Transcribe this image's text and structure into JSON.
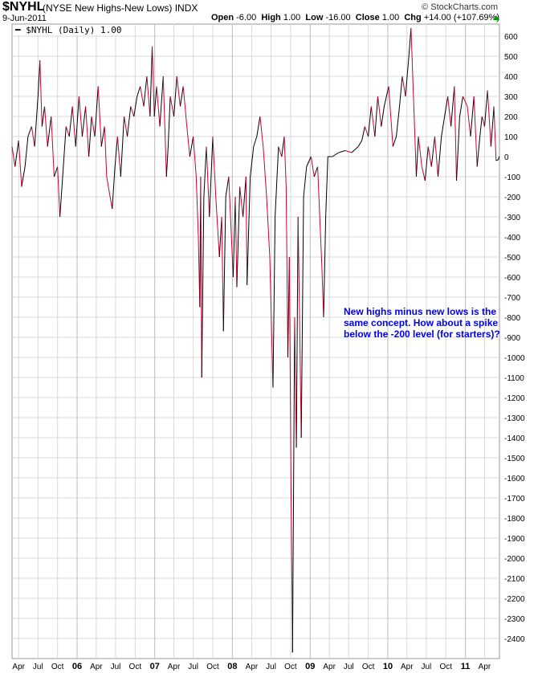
{
  "header": {
    "symbol": "$NYHL",
    "description": "(NYSE New Highs-New Lows) INDX",
    "copyright": "© StockCharts.com",
    "date": "9-Jun-2011",
    "open_label": "Open",
    "open": "-6.00",
    "high_label": "High",
    "high": "1.00",
    "low_label": "Low",
    "low": "-16.00",
    "close_label": "Close",
    "close": "1.00",
    "chg_label": "Chg",
    "chg": "+14.00 (+107.69%)",
    "chg_direction": "up"
  },
  "legend": {
    "text": "$NYHL (Daily) 1.00"
  },
  "annotation": "New highs minus new lows is the same concept. How about a spike below the -200 level (for starters)?",
  "colors": {
    "down": "#cc0033",
    "up": "#000000",
    "grid": "#d8d8d8",
    "annotation": "#0000ee"
  },
  "chart_data": {
    "type": "line",
    "ylim": [
      -2500,
      660
    ],
    "xlim": [
      "2005-03-01",
      "2011-06-10"
    ],
    "grid": true,
    "y_axis_side": "right",
    "legend_placement": "top-left",
    "yticks": [
      600,
      500,
      400,
      300,
      200,
      100,
      0,
      -100,
      -200,
      -300,
      -400,
      -500,
      -600,
      -700,
      -800,
      -900,
      -1000,
      -1100,
      -1200,
      -1300,
      -1400,
      -1500,
      -1600,
      -1700,
      -1800,
      -1900,
      -2000,
      -2100,
      -2200,
      -2300,
      -2400
    ],
    "xticks": [
      [
        "2005-04-01",
        "Apr"
      ],
      [
        "2005-07-01",
        "Jul"
      ],
      [
        "2005-10-01",
        "Oct"
      ],
      [
        "2006-01-01",
        "06"
      ],
      [
        "2006-04-01",
        "Apr"
      ],
      [
        "2006-07-01",
        "Jul"
      ],
      [
        "2006-10-01",
        "Oct"
      ],
      [
        "2007-01-01",
        "07"
      ],
      [
        "2007-04-01",
        "Apr"
      ],
      [
        "2007-07-01",
        "Jul"
      ],
      [
        "2007-10-01",
        "Oct"
      ],
      [
        "2008-01-01",
        "08"
      ],
      [
        "2008-04-01",
        "Apr"
      ],
      [
        "2008-07-01",
        "Jul"
      ],
      [
        "2008-10-01",
        "Oct"
      ],
      [
        "2009-01-01",
        "09"
      ],
      [
        "2009-04-01",
        "Apr"
      ],
      [
        "2009-07-01",
        "Jul"
      ],
      [
        "2009-10-01",
        "Oct"
      ],
      [
        "2010-01-01",
        "10"
      ],
      [
        "2010-04-01",
        "Apr"
      ],
      [
        "2010-07-01",
        "Jul"
      ],
      [
        "2010-10-01",
        "Oct"
      ],
      [
        "2011-01-01",
        "11"
      ],
      [
        "2011-04-01",
        "Apr"
      ]
    ],
    "series": [
      {
        "name": "$NYHL (Daily)",
        "points": [
          [
            "2005-03-01",
            50
          ],
          [
            "2005-03-15",
            -50
          ],
          [
            "2005-04-01",
            80
          ],
          [
            "2005-04-15",
            -150
          ],
          [
            "2005-05-01",
            -50
          ],
          [
            "2005-05-15",
            100
          ],
          [
            "2005-06-01",
            150
          ],
          [
            "2005-06-15",
            50
          ],
          [
            "2005-07-01",
            300
          ],
          [
            "2005-07-10",
            480
          ],
          [
            "2005-07-20",
            150
          ],
          [
            "2005-08-01",
            250
          ],
          [
            "2005-08-15",
            50
          ],
          [
            "2005-09-01",
            200
          ],
          [
            "2005-09-15",
            -100
          ],
          [
            "2005-10-01",
            -50
          ],
          [
            "2005-10-12",
            -300
          ],
          [
            "2005-10-25",
            -100
          ],
          [
            "2005-11-10",
            150
          ],
          [
            "2005-11-25",
            100
          ],
          [
            "2005-12-10",
            250
          ],
          [
            "2005-12-25",
            50
          ],
          [
            "2006-01-10",
            300
          ],
          [
            "2006-01-25",
            100
          ],
          [
            "2006-02-10",
            250
          ],
          [
            "2006-02-25",
            0
          ],
          [
            "2006-03-10",
            200
          ],
          [
            "2006-03-25",
            100
          ],
          [
            "2006-04-10",
            350
          ],
          [
            "2006-04-25",
            50
          ],
          [
            "2006-05-10",
            150
          ],
          [
            "2006-05-20",
            -100
          ],
          [
            "2006-06-05",
            -200
          ],
          [
            "2006-06-15",
            -260
          ],
          [
            "2006-06-28",
            -50
          ],
          [
            "2006-07-10",
            100
          ],
          [
            "2006-07-25",
            -100
          ],
          [
            "2006-08-10",
            200
          ],
          [
            "2006-08-25",
            100
          ],
          [
            "2006-09-10",
            250
          ],
          [
            "2006-09-25",
            200
          ],
          [
            "2006-10-10",
            300
          ],
          [
            "2006-10-25",
            350
          ],
          [
            "2006-11-10",
            250
          ],
          [
            "2006-11-25",
            400
          ],
          [
            "2006-12-10",
            200
          ],
          [
            "2006-12-20",
            550
          ],
          [
            "2006-12-30",
            200
          ],
          [
            "2007-01-10",
            350
          ],
          [
            "2007-01-25",
            150
          ],
          [
            "2007-02-10",
            400
          ],
          [
            "2007-02-25",
            -100
          ],
          [
            "2007-03-05",
            50
          ],
          [
            "2007-03-15",
            300
          ],
          [
            "2007-04-01",
            200
          ],
          [
            "2007-04-15",
            400
          ],
          [
            "2007-05-01",
            250
          ],
          [
            "2007-05-15",
            350
          ],
          [
            "2007-06-01",
            150
          ],
          [
            "2007-06-15",
            0
          ],
          [
            "2007-07-01",
            100
          ],
          [
            "2007-07-15",
            -100
          ],
          [
            "2007-07-25",
            -400
          ],
          [
            "2007-08-01",
            -750
          ],
          [
            "2007-08-05",
            -100
          ],
          [
            "2007-08-10",
            -1100
          ],
          [
            "2007-08-20",
            -200
          ],
          [
            "2007-09-01",
            50
          ],
          [
            "2007-09-15",
            -300
          ],
          [
            "2007-10-01",
            100
          ],
          [
            "2007-10-15",
            -200
          ],
          [
            "2007-11-01",
            -500
          ],
          [
            "2007-11-12",
            -300
          ],
          [
            "2007-11-20",
            -870
          ],
          [
            "2007-12-01",
            -200
          ],
          [
            "2007-12-15",
            -100
          ],
          [
            "2008-01-05",
            -600
          ],
          [
            "2008-01-15",
            -200
          ],
          [
            "2008-01-22",
            -650
          ],
          [
            "2008-02-05",
            -150
          ],
          [
            "2008-02-20",
            -300
          ],
          [
            "2008-03-05",
            -100
          ],
          [
            "2008-03-10",
            -640
          ],
          [
            "2008-03-25",
            -100
          ],
          [
            "2008-04-10",
            50
          ],
          [
            "2008-04-25",
            100
          ],
          [
            "2008-05-10",
            200
          ],
          [
            "2008-05-25",
            50
          ],
          [
            "2008-06-10",
            -200
          ],
          [
            "2008-06-25",
            -500
          ],
          [
            "2008-07-10",
            -1150
          ],
          [
            "2008-07-20",
            -300
          ],
          [
            "2008-08-05",
            50
          ],
          [
            "2008-08-20",
            0
          ],
          [
            "2008-09-01",
            100
          ],
          [
            "2008-09-10",
            -150
          ],
          [
            "2008-09-18",
            -1000
          ],
          [
            "2008-09-25",
            -500
          ],
          [
            "2008-10-03",
            -1650
          ],
          [
            "2008-10-10",
            -2470
          ],
          [
            "2008-10-20",
            -800
          ],
          [
            "2008-10-28",
            -1450
          ],
          [
            "2008-11-05",
            -300
          ],
          [
            "2008-11-12",
            -800
          ],
          [
            "2008-11-20",
            -1400
          ],
          [
            "2008-12-01",
            -200
          ],
          [
            "2008-12-15",
            -50
          ],
          [
            "2009-01-05",
            0
          ],
          [
            "2009-01-20",
            -100
          ],
          [
            "2009-02-05",
            -50
          ],
          [
            "2009-02-15",
            -300
          ],
          [
            "2009-02-25",
            -550
          ],
          [
            "2009-03-05",
            -800
          ],
          [
            "2009-03-15",
            -300
          ],
          [
            "2009-03-25",
            0
          ],
          [
            "2009-04-15",
            0
          ],
          [
            "2009-05-15",
            20
          ],
          [
            "2009-06-15",
            30
          ],
          [
            "2009-07-15",
            20
          ],
          [
            "2009-08-15",
            50
          ],
          [
            "2009-09-01",
            80
          ],
          [
            "2009-09-15",
            150
          ],
          [
            "2009-10-01",
            100
          ],
          [
            "2009-10-15",
            250
          ],
          [
            "2009-11-01",
            100
          ],
          [
            "2009-11-15",
            300
          ],
          [
            "2009-12-01",
            150
          ],
          [
            "2009-12-15",
            250
          ],
          [
            "2010-01-05",
            350
          ],
          [
            "2010-01-25",
            50
          ],
          [
            "2010-02-10",
            100
          ],
          [
            "2010-02-25",
            250
          ],
          [
            "2010-03-10",
            400
          ],
          [
            "2010-03-25",
            300
          ],
          [
            "2010-04-10",
            500
          ],
          [
            "2010-04-20",
            640
          ],
          [
            "2010-05-05",
            200
          ],
          [
            "2010-05-15",
            -100
          ],
          [
            "2010-05-25",
            100
          ],
          [
            "2010-06-10",
            -50
          ],
          [
            "2010-06-25",
            -120
          ],
          [
            "2010-07-10",
            50
          ],
          [
            "2010-07-25",
            -50
          ],
          [
            "2010-08-10",
            100
          ],
          [
            "2010-08-25",
            -100
          ],
          [
            "2010-09-10",
            100
          ],
          [
            "2010-09-25",
            200
          ],
          [
            "2010-10-10",
            300
          ],
          [
            "2010-10-25",
            150
          ],
          [
            "2010-11-10",
            350
          ],
          [
            "2010-11-20",
            -120
          ],
          [
            "2010-12-05",
            200
          ],
          [
            "2010-12-20",
            300
          ],
          [
            "2011-01-10",
            250
          ],
          [
            "2011-01-25",
            100
          ],
          [
            "2011-02-10",
            300
          ],
          [
            "2011-02-25",
            -50
          ],
          [
            "2011-03-10",
            100
          ],
          [
            "2011-03-20",
            200
          ],
          [
            "2011-04-01",
            150
          ],
          [
            "2011-04-15",
            330
          ],
          [
            "2011-05-01",
            50
          ],
          [
            "2011-05-15",
            250
          ],
          [
            "2011-05-25",
            -20
          ],
          [
            "2011-06-05",
            -15
          ],
          [
            "2011-06-09",
            1
          ]
        ]
      }
    ]
  }
}
